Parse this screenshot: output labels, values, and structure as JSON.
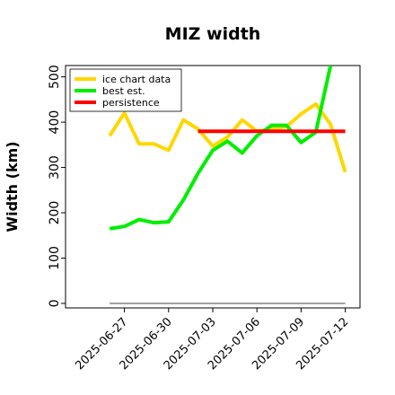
{
  "chart_data": {
    "type": "line",
    "title": "MIZ width",
    "ylabel": "Width (km)",
    "xlabel": "",
    "xlim": [
      "2025-06-23",
      "2025-07-13"
    ],
    "ylim": [
      -10,
      525
    ],
    "yticks": [
      0,
      100,
      200,
      300,
      400,
      500
    ],
    "xticks": [
      "2025-06-27",
      "2025-06-30",
      "2025-07-03",
      "2025-07-06",
      "2025-07-09",
      "2025-07-12"
    ],
    "grid": false,
    "legend_position": "top-left",
    "baseline": {
      "value": 0,
      "color": "#808080"
    },
    "series": [
      {
        "name": "ice chart data",
        "color": "#FFD700",
        "points": [
          [
            "2025-06-26",
            370
          ],
          [
            "2025-06-27",
            420
          ],
          [
            "2025-06-28",
            352
          ],
          [
            "2025-06-29",
            352
          ],
          [
            "2025-06-30",
            338
          ],
          [
            "2025-07-01",
            405
          ],
          [
            "2025-07-02",
            385
          ],
          [
            "2025-07-03",
            347
          ],
          [
            "2025-07-04",
            367
          ],
          [
            "2025-07-05",
            405
          ],
          [
            "2025-07-06",
            380
          ],
          [
            "2025-07-07",
            385
          ],
          [
            "2025-07-08",
            390
          ],
          [
            "2025-07-09",
            418
          ],
          [
            "2025-07-10",
            440
          ],
          [
            "2025-07-11",
            395
          ],
          [
            "2025-07-12",
            290
          ]
        ]
      },
      {
        "name": "best est.",
        "color": "#00EE00",
        "points": [
          [
            "2025-06-26",
            165
          ],
          [
            "2025-06-27",
            170
          ],
          [
            "2025-06-28",
            185
          ],
          [
            "2025-06-29",
            178
          ],
          [
            "2025-06-30",
            180
          ],
          [
            "2025-07-01",
            228
          ],
          [
            "2025-07-02",
            287
          ],
          [
            "2025-07-03",
            338
          ],
          [
            "2025-07-04",
            358
          ],
          [
            "2025-07-05",
            332
          ],
          [
            "2025-07-06",
            370
          ],
          [
            "2025-07-07",
            393
          ],
          [
            "2025-07-08",
            393
          ],
          [
            "2025-07-09",
            355
          ],
          [
            "2025-07-10",
            378
          ],
          [
            "2025-07-11",
            525
          ]
        ]
      },
      {
        "name": "persistence",
        "color": "#FF0000",
        "points": [
          [
            "2025-07-02",
            380
          ],
          [
            "2025-07-12",
            380
          ]
        ]
      }
    ]
  }
}
